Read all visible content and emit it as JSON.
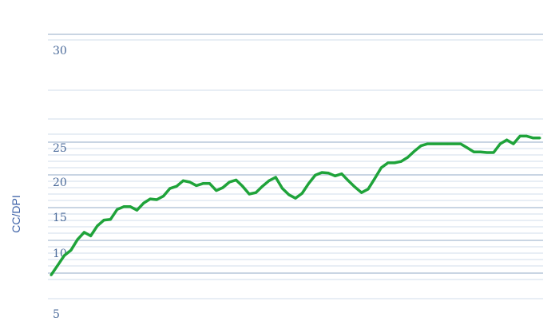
{
  "chart_data": {
    "type": "line",
    "title": "",
    "xlabel": "",
    "ylabel": "CC/DPI",
    "y_ticks": [
      30,
      25,
      20,
      15,
      10,
      5
    ],
    "ylim": [
      5,
      30
    ],
    "grid": true,
    "line_color": "#1fa33a",
    "series": [
      {
        "values": [
          8.2,
          9.0,
          9.8,
          10.4,
          11.9,
          12.9,
          12.4,
          13.8,
          14.6,
          14.7,
          16.1,
          16.5,
          16.5,
          16.0,
          17.0,
          17.6,
          17.5,
          18.0,
          19.1,
          19.4,
          20.2,
          20.0,
          19.5,
          19.8,
          19.8,
          18.8,
          19.2,
          20.0,
          20.3,
          19.4,
          18.3,
          18.5,
          19.4,
          20.2,
          20.7,
          19.1,
          18.2,
          17.7,
          18.4,
          19.8,
          21.0,
          21.4,
          21.3,
          20.9,
          21.2,
          20.2,
          19.3,
          18.5,
          19.0,
          20.5,
          22.1,
          22.8,
          22.8,
          23.0,
          23.6,
          24.5,
          25.1,
          25.2,
          25.2,
          25.2,
          25.2,
          25.2,
          25.2,
          25.0,
          24.4,
          24.4,
          24.3,
          24.3,
          25.2,
          25.4,
          25.2,
          25.6,
          25.6,
          25.5,
          25.5
        ]
      }
    ]
  }
}
